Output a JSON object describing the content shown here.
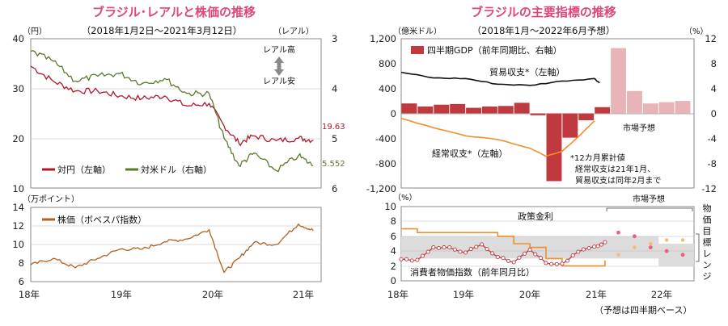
{
  "left": {
    "title": "ブラジル･レアルと株価の推移",
    "subtitle": "（2018年1月2日～2021年3月12日）",
    "top_chart": {
      "left_unit": "（円）",
      "right_unit": "（レアル）",
      "left_ticks": [
        "40",
        "30",
        "20",
        "10"
      ],
      "right_ticks": [
        "3",
        "4",
        "5",
        "6"
      ],
      "ylim_left": [
        10,
        40
      ],
      "ylim_right": [
        6,
        3
      ],
      "right_axis_inverted": true,
      "arrow_top_label": "レアル高",
      "arrow_bottom_label": "レアル安",
      "end_label_jpy": "19.63",
      "end_label_usd": "5.552",
      "legend": [
        {
          "name": "対円（左軸）",
          "color": "#b0172a"
        },
        {
          "name": "対米ドル（右軸）",
          "color": "#5a7a2a"
        }
      ]
    },
    "bottom_chart": {
      "unit": "（万ポイント）",
      "ticks": [
        "14",
        "12",
        "10",
        "8",
        "6"
      ],
      "ylim": [
        6,
        14
      ],
      "legend": [
        {
          "name": "株価（ボベスパ指数）",
          "color": "#b55f1c"
        }
      ]
    },
    "x_ticks": [
      "18年",
      "19年",
      "20年",
      "21年"
    ]
  },
  "right": {
    "title": "ブラジルの主要指標の推移",
    "subtitle": "（2018年1月～2022年6月予想）",
    "top_chart": {
      "left_unit": "（億米ドル）",
      "right_unit": "（%）",
      "left_ticks": [
        "1,200",
        "800",
        "400",
        "0",
        "-400",
        "-800",
        "-1,200"
      ],
      "right_ticks": [
        "12",
        "8",
        "4",
        "0",
        "-4",
        "-8",
        "-12"
      ],
      "ylim_left": [
        -1200,
        1200
      ],
      "ylim_right": [
        -12,
        12
      ],
      "legend": [
        {
          "name": "四半期GDP（前年同期比、右軸）",
          "color": "#c0393f"
        }
      ],
      "trade_label": "貿易収支*（左軸）",
      "current_label": "経常収支*（左軸）",
      "forecast_label": "市場予想",
      "note_lines": [
        "*12カ月累計値",
        "経常収支は21年1月、",
        "貿易収支は同年2月まで"
      ]
    },
    "bottom_chart": {
      "unit": "（%）",
      "ticks": [
        "10",
        "8",
        "6",
        "4",
        "2",
        "0"
      ],
      "ylim": [
        0,
        10
      ],
      "policy_label": "政策金利",
      "cpi_label": "消費者物価指数（前年同月比）",
      "forecast_label": "市場予想",
      "target_label": "物価目標レンジ"
    },
    "x_ticks": [
      "18年",
      "19年",
      "20年",
      "21年",
      "22年"
    ],
    "x_note": "（予想は四半期ベース）"
  },
  "chart_data": [
    {
      "type": "line",
      "title": "ブラジル･レアルと株価の推移",
      "x": [
        "2018-01",
        "2018-04",
        "2018-07",
        "2018-10",
        "2019-01",
        "2019-04",
        "2019-07",
        "2019-10",
        "2020-01",
        "2020-03",
        "2020-05",
        "2020-07",
        "2020-10",
        "2021-01",
        "2021-03"
      ],
      "series": [
        {
          "name": "対円（左軸）",
          "axis": "left",
          "values": [
            34.5,
            31.5,
            29.5,
            29.5,
            28.5,
            28.0,
            28.5,
            26.5,
            27.0,
            22.5,
            19.0,
            20.5,
            19.5,
            20.0,
            19.63
          ]
        },
        {
          "name": "対米ドル（右軸）",
          "axis": "right",
          "values": [
            3.25,
            3.45,
            3.85,
            3.75,
            3.7,
            3.9,
            3.8,
            4.1,
            4.1,
            5.0,
            5.55,
            5.3,
            5.65,
            5.35,
            5.552
          ]
        }
      ]
    },
    {
      "type": "line",
      "title": "株価（ボベスパ指数）",
      "x": [
        "2018-01",
        "2018-04",
        "2018-07",
        "2018-10",
        "2019-01",
        "2019-04",
        "2019-07",
        "2019-10",
        "2020-01",
        "2020-03",
        "2020-05",
        "2020-07",
        "2020-10",
        "2021-01",
        "2021-03"
      ],
      "series": [
        {
          "name": "株価（ボベスパ指数）",
          "values": [
            7.8,
            8.5,
            7.5,
            8.5,
            9.5,
            9.5,
            10.3,
            10.6,
            11.6,
            7.0,
            8.5,
            10.2,
            10.0,
            12.2,
            11.5
          ]
        }
      ]
    },
    {
      "type": "bar",
      "title": "ブラジルの主要指標の推移",
      "categories": [
        "18Q1",
        "18Q2",
        "18Q3",
        "18Q4",
        "19Q1",
        "19Q2",
        "19Q3",
        "19Q4",
        "20Q1",
        "20Q2",
        "20Q3",
        "20Q4",
        "21Q1",
        "21Q2",
        "21Q3",
        "21Q4",
        "22Q1",
        "22Q2"
      ],
      "series": [
        {
          "name": "四半期GDP（前年同期比、右軸）",
          "axis": "right",
          "values": [
            1.6,
            1.1,
            1.4,
            1.5,
            0.9,
            1.1,
            1.2,
            1.7,
            -0.3,
            -10.9,
            -3.9,
            -1.1,
            1.0,
            10.5,
            3.6,
            1.6,
            1.8,
            2.0
          ]
        },
        {
          "name": "市場予想",
          "values": [
            null,
            null,
            null,
            null,
            null,
            null,
            null,
            null,
            null,
            null,
            null,
            null,
            null,
            10.5,
            3.6,
            1.6,
            1.8,
            2.0
          ]
        }
      ],
      "lines": [
        {
          "name": "貿易収支*（左軸）",
          "axis": "left",
          "x": [
            "2018-01",
            "2018-07",
            "2019-01",
            "2019-07",
            "2020-01",
            "2020-07",
            "2021-01",
            "2021-02"
          ],
          "values": [
            660,
            570,
            560,
            470,
            450,
            520,
            560,
            490
          ]
        },
        {
          "name": "経常収支*（左軸）",
          "axis": "left",
          "x": [
            "2018-01",
            "2018-07",
            "2019-01",
            "2019-07",
            "2020-01",
            "2020-04",
            "2020-07",
            "2020-10",
            "2021-01"
          ],
          "values": [
            -80,
            -230,
            -360,
            -420,
            -560,
            -690,
            -610,
            -380,
            -120
          ]
        }
      ],
      "ylim_left": [
        -1200,
        1200
      ],
      "ylim_right": [
        -12,
        12
      ]
    },
    {
      "type": "line",
      "title": "政策金利・消費者物価指数",
      "x": [
        "2018-01",
        "2018-04",
        "2018-07",
        "2018-10",
        "2019-01",
        "2019-04",
        "2019-07",
        "2019-10",
        "2020-01",
        "2020-04",
        "2020-07",
        "2020-10",
        "2021-01",
        "2021-03"
      ],
      "series": [
        {
          "name": "政策金利",
          "values": [
            7.0,
            6.5,
            6.5,
            6.5,
            6.5,
            6.5,
            6.0,
            5.0,
            4.5,
            3.0,
            2.0,
            2.0,
            2.0,
            2.75
          ]
        },
        {
          "name": "消費者物価指数（前年同月比）",
          "values": [
            2.9,
            2.8,
            4.5,
            4.5,
            3.8,
            4.9,
            3.2,
            2.5,
            4.2,
            2.4,
            2.3,
            3.9,
            4.6,
            5.2
          ]
        }
      ],
      "forecast": {
        "x": [
          "2021-Q2",
          "2021-Q3",
          "2021-Q4",
          "2022-Q1",
          "2022-Q2"
        ],
        "policy_rate": [
          3.5,
          4.5,
          5.0,
          5.5,
          5.5
        ],
        "cpi": [
          6.5,
          6.0,
          4.5,
          4.0,
          3.5
        ]
      },
      "target_band": [
        {
          "from": "2018",
          "lower": 3.0,
          "upper": 6.0
        },
        {
          "from": "2022",
          "lower": 2.0,
          "upper": 5.0
        }
      ],
      "ylim": [
        0,
        10
      ]
    }
  ]
}
